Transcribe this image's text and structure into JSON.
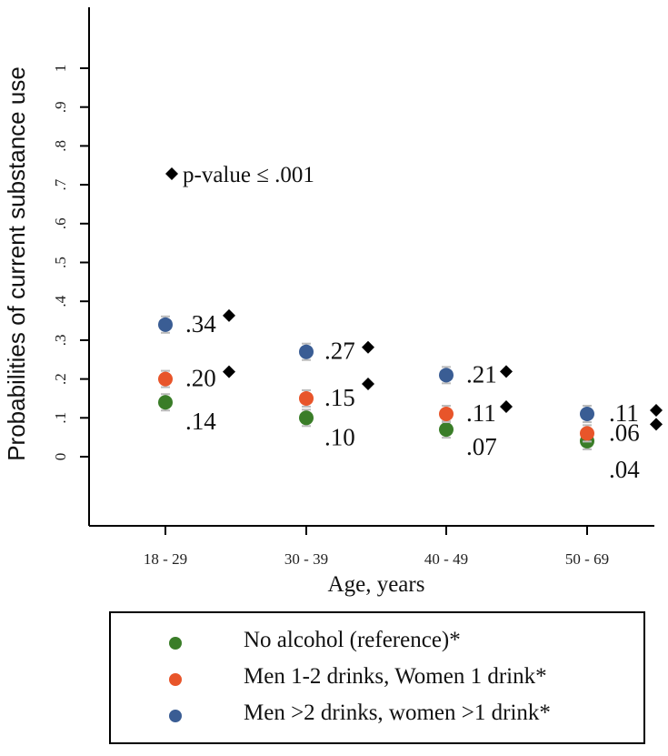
{
  "chart_data": {
    "type": "scatter",
    "ylabel": "Probabilities of current substance use",
    "xlabel": "Age, years",
    "categories": [
      "18 - 29",
      "30 - 39",
      "40 - 49",
      "50 - 69"
    ],
    "yticks": [
      "0",
      ".1",
      ".2",
      ".3",
      ".4",
      ".5",
      ".6",
      ".7",
      ".8",
      ".9",
      "1"
    ],
    "ylim": [
      -0.18,
      1.18
    ],
    "annotation": "p-value ≤ .001",
    "series": [
      {
        "name": "No alcohol (reference)*",
        "color": "#3a7d28",
        "values": [
          0.14,
          0.1,
          0.07,
          0.04
        ],
        "labels": [
          ".14",
          ".10",
          ".07",
          ".04"
        ],
        "significant": [
          false,
          false,
          false,
          false
        ]
      },
      {
        "name": "Men 1-2 drinks, Women 1 drink*",
        "color": "#e8552a",
        "values": [
          0.2,
          0.15,
          0.11,
          0.06
        ],
        "labels": [
          ".20",
          ".15",
          ".11",
          ".06"
        ],
        "significant": [
          true,
          true,
          true,
          true
        ]
      },
      {
        "name": "Men >2 drinks, women >1 drink*",
        "color": "#3a5d94",
        "values": [
          0.34,
          0.27,
          0.21,
          0.11
        ],
        "labels": [
          ".34",
          ".27",
          ".21",
          ".11"
        ],
        "significant": [
          true,
          true,
          true,
          true
        ]
      }
    ],
    "legend_position": "bottom",
    "grid": false
  }
}
